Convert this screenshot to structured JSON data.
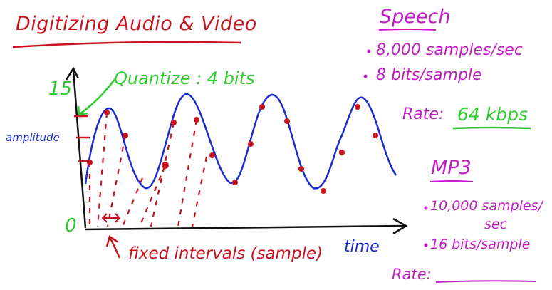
{
  "title": "Digitizing Audio & Video",
  "colors": {
    "red": "#c8141e",
    "blue": "#1a2bd1",
    "green": "#2dcc2d",
    "purple": "#c21ec6",
    "axis": "#111111"
  },
  "graph": {
    "y_max_label": "15",
    "y_min_label": "0",
    "y_axis_label": "amplitude",
    "x_axis_label": "time",
    "quantize_note": "Quantize : 4 bits",
    "interval_note": "fixed intervals (sample)"
  },
  "speech": {
    "heading": "Speech",
    "bullets": [
      "8,000 samples/sec",
      "8 bits/sample"
    ],
    "rate_label": "Rate:",
    "rate_value": "64 kbps"
  },
  "mp3": {
    "heading": "MP3",
    "bullet1_line1": "10,000 samples/",
    "bullet1_line2": "sec",
    "bullet2": "16 bits/sample",
    "rate_label": "Rate:"
  }
}
